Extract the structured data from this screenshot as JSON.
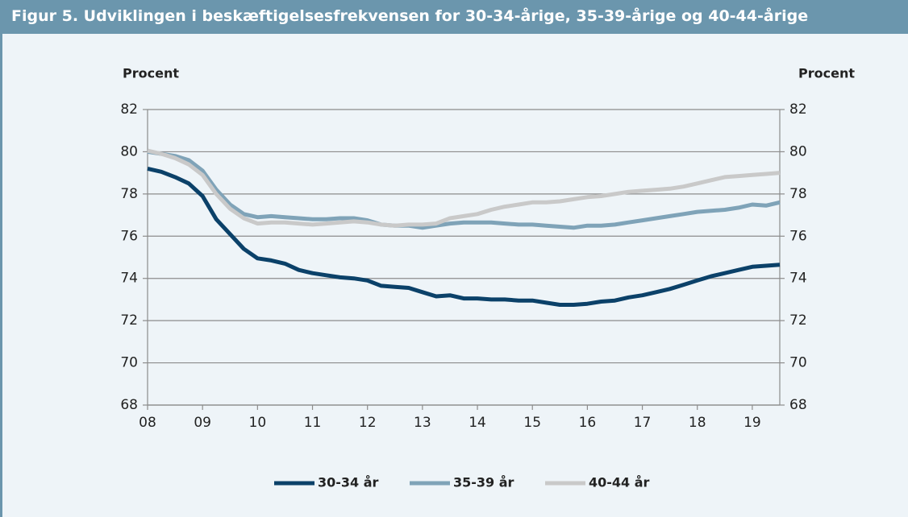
{
  "chart_data": {
    "type": "line",
    "title": "Figur 5. Udviklingen i beskæftigelsesfrekvensen for 30-34-årige, 35-39-årige og 40-44-årige",
    "y_label": "Procent",
    "y2_label": "Procent",
    "x": [
      8,
      8.25,
      8.5,
      8.75,
      9,
      9.25,
      9.5,
      9.75,
      10,
      10.25,
      10.5,
      10.75,
      11,
      11.25,
      11.5,
      11.75,
      12,
      12.25,
      12.5,
      12.75,
      13,
      13.25,
      13.5,
      13.75,
      14,
      14.25,
      14.5,
      14.75,
      15,
      15.25,
      15.5,
      15.75,
      16,
      16.25,
      16.5,
      16.75,
      17,
      17.25,
      17.5,
      17.75,
      18,
      18.25,
      18.5,
      18.75,
      19,
      19.25,
      19.5
    ],
    "series": [
      {
        "name": "30-34 år",
        "color": "#0b4169",
        "values": [
          79.2,
          79.05,
          78.8,
          78.5,
          77.9,
          76.8,
          76.1,
          75.4,
          74.95,
          74.85,
          74.7,
          74.4,
          74.25,
          74.15,
          74.05,
          74.0,
          73.9,
          73.65,
          73.6,
          73.55,
          73.35,
          73.15,
          73.2,
          73.05,
          73.05,
          73.0,
          73.0,
          72.95,
          72.95,
          72.85,
          72.75,
          72.75,
          72.8,
          72.9,
          72.95,
          73.1,
          73.2,
          73.35,
          73.5,
          73.7,
          73.9,
          74.1,
          74.25,
          74.4,
          74.55,
          74.6,
          74.65
        ]
      },
      {
        "name": "35-39 år",
        "color": "#7fa3b8",
        "values": [
          80.0,
          79.9,
          79.8,
          79.6,
          79.1,
          78.2,
          77.5,
          77.05,
          76.9,
          76.95,
          76.9,
          76.85,
          76.8,
          76.8,
          76.85,
          76.85,
          76.75,
          76.55,
          76.5,
          76.5,
          76.4,
          76.5,
          76.6,
          76.65,
          76.65,
          76.65,
          76.6,
          76.55,
          76.55,
          76.5,
          76.45,
          76.4,
          76.5,
          76.5,
          76.55,
          76.65,
          76.75,
          76.85,
          76.95,
          77.05,
          77.15,
          77.2,
          77.25,
          77.35,
          77.5,
          77.45,
          77.6
        ]
      },
      {
        "name": "40-44 år",
        "color": "#c9c9c9",
        "values": [
          80.05,
          79.9,
          79.7,
          79.4,
          78.9,
          78.0,
          77.3,
          76.85,
          76.6,
          76.65,
          76.65,
          76.6,
          76.55,
          76.6,
          76.65,
          76.7,
          76.65,
          76.55,
          76.5,
          76.55,
          76.55,
          76.6,
          76.85,
          76.95,
          77.05,
          77.25,
          77.4,
          77.5,
          77.6,
          77.6,
          77.65,
          77.75,
          77.85,
          77.9,
          78.0,
          78.1,
          78.15,
          78.2,
          78.25,
          78.35,
          78.5,
          78.65,
          78.8,
          78.85,
          78.9,
          78.95,
          79.0
        ]
      }
    ],
    "xlim": [
      8,
      19.5
    ],
    "xticks": [
      {
        "value": 8,
        "label": "08"
      },
      {
        "value": 9,
        "label": "09"
      },
      10,
      11,
      12,
      13,
      14,
      15,
      16,
      17,
      18,
      19
    ],
    "ylim": [
      68,
      82
    ],
    "yticks": [
      68,
      70,
      72,
      74,
      76,
      78,
      80,
      82
    ],
    "y2lim": [
      68,
      82
    ],
    "y2ticks": [
      68,
      70,
      72,
      74,
      76,
      78,
      80,
      82
    ],
    "grid": true,
    "legend": "bottom"
  }
}
